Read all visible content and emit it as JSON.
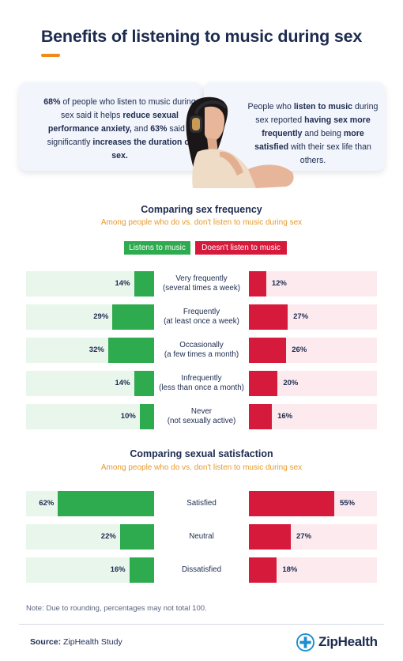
{
  "title": "Benefits of listening to music during sex",
  "card_left": {
    "s1": "68%",
    "s2": " of people who listen to music during sex said it helps ",
    "s3": "reduce sexual performance anxiety,",
    "s4": " and ",
    "s5": "63%",
    "s6": " said it significantly ",
    "s7": "increases the duration of sex."
  },
  "card_right": {
    "s1": "People who ",
    "s2": "listen to music",
    "s3": " during sex reported ",
    "s4": "having sex more frequently",
    "s5": " and being ",
    "s6": "more satisfied",
    "s7": " with their sex life than others."
  },
  "colors": {
    "green": "#2eaa4f",
    "red": "#d61a3c",
    "green_bg": "#e8f6ec",
    "red_bg": "#fceaee",
    "navy": "#1d2b4f",
    "orange": "#f08a1c"
  },
  "chart_data": [
    {
      "type": "bar",
      "title": "Comparing sex frequency",
      "subtitle": "Among people who do vs. don't listen to music during sex",
      "legend": [
        "Listens to music",
        "Doesn't listen to music"
      ],
      "categories": [
        [
          "Very frequently",
          "(several times a week)"
        ],
        [
          "Frequently",
          "(at least once a week)"
        ],
        [
          "Occasionally",
          "(a few times a month)"
        ],
        [
          "Infrequently",
          "(less than once a month)"
        ],
        [
          "Never",
          "(not sexually active)"
        ]
      ],
      "series": [
        {
          "name": "Listens to music",
          "values": [
            14,
            29,
            32,
            14,
            10
          ]
        },
        {
          "name": "Doesn't listen to music",
          "values": [
            12,
            27,
            26,
            20,
            16
          ]
        }
      ],
      "unit": "%",
      "ylim": [
        0,
        100
      ]
    },
    {
      "type": "bar",
      "title": "Comparing sexual satisfaction",
      "subtitle": "Among people who do vs. don't listen to music during sex",
      "categories": [
        [
          "Satisfied"
        ],
        [
          "Neutral"
        ],
        [
          "Dissatisfied"
        ]
      ],
      "series": [
        {
          "name": "Listens to music",
          "values": [
            62,
            22,
            16
          ]
        },
        {
          "name": "Doesn't listen to music",
          "values": [
            55,
            27,
            18
          ]
        }
      ],
      "unit": "%",
      "ylim": [
        0,
        100
      ]
    }
  ],
  "note": "Note: Due to rounding, percentages may not total 100.",
  "source": {
    "label": "Source:",
    "text": " ZipHealth Study"
  },
  "logo": {
    "text": "ZipHealth"
  }
}
